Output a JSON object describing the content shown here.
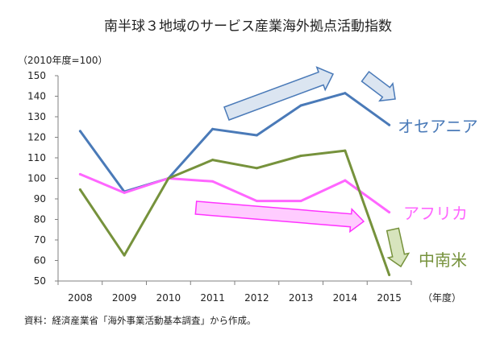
{
  "title": "南半球３地域のサービス産業海外拠点活動指数",
  "unit_label": "（2010年度=100）",
  "source_note": "資料：経済産業省「海外事業活動基本調査」から作成。",
  "chart_data": {
    "type": "line",
    "title": "南半球３地域のサービス産業海外拠点活動指数",
    "ylabel": "（2010年度=100）",
    "xlabel": "（年度）",
    "x_tick_labels": [
      "2008",
      "2009",
      "2010",
      "2011",
      "2012",
      "2013",
      "2014",
      "2015"
    ],
    "y_tick_labels": [
      "50",
      "60",
      "70",
      "80",
      "90",
      "100",
      "110",
      "120",
      "130",
      "140",
      "150"
    ],
    "ylim": [
      50,
      150
    ],
    "grid": false,
    "series": [
      {
        "name": "オセアニア",
        "color": "#4a7ab8",
        "values": [
          123,
          93.5,
          100,
          124,
          121,
          135.5,
          141.5,
          126
        ]
      },
      {
        "name": "アフリカ",
        "color": "#ff66ff",
        "values": [
          102,
          93,
          100,
          98.5,
          89,
          89,
          99,
          83.5
        ]
      },
      {
        "name": "中南米",
        "color": "#76923c",
        "values": [
          94.5,
          62.5,
          100,
          109,
          105,
          111,
          113.5,
          53
        ]
      }
    ],
    "annotations": [
      {
        "kind": "arrow",
        "series": "オセアニア",
        "trend": "up",
        "color": "#4a7ab8",
        "fill": "#dbe5f1"
      },
      {
        "kind": "arrow",
        "series": "オセアニア",
        "trend": "down",
        "color": "#4a7ab8",
        "fill": "#dbe5f1"
      },
      {
        "kind": "arrow",
        "series": "アフリカ",
        "trend": "down",
        "color": "#ff33ff",
        "fill": "#ffccff"
      },
      {
        "kind": "arrow",
        "series": "中南米",
        "trend": "down",
        "color": "#76923c",
        "fill": "#d7e4bd"
      }
    ]
  }
}
